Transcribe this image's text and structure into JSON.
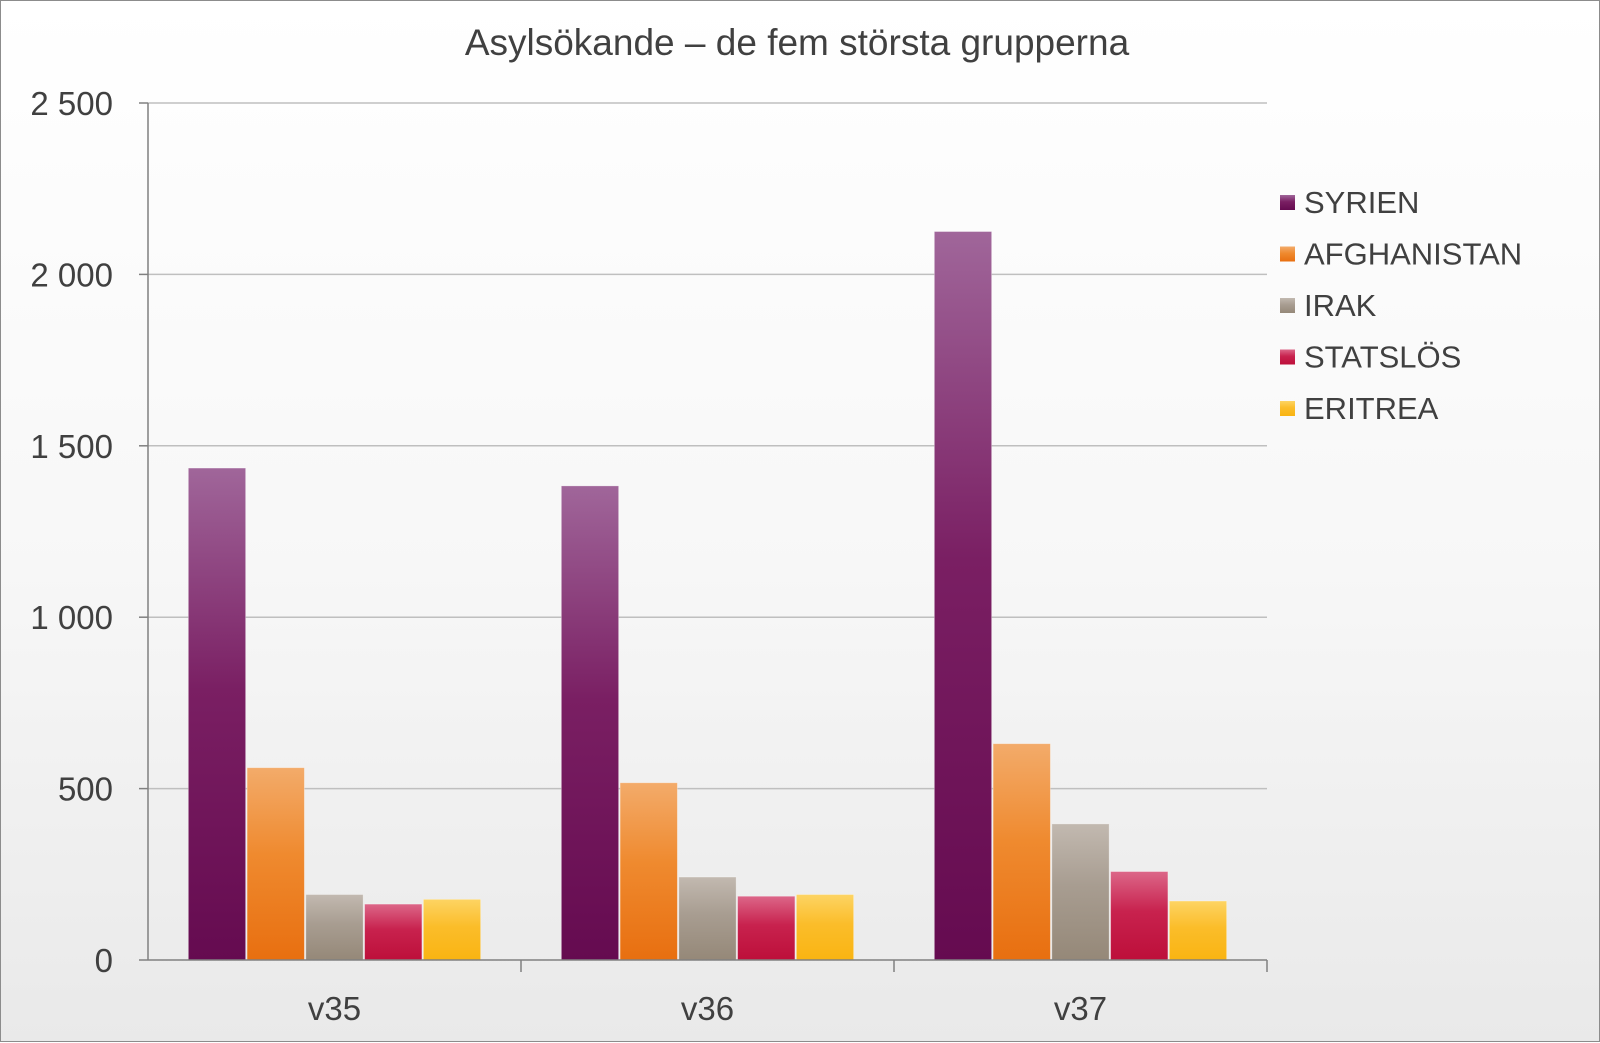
{
  "chart_data": {
    "type": "bar",
    "title": "Asylsökande – de fem största grupperna",
    "xlabel": "",
    "ylabel": "",
    "categories": [
      "v35",
      "v36",
      "v37"
    ],
    "series": [
      {
        "name": "SYRIEN",
        "values": [
          1435,
          1383,
          2125
        ],
        "color": "#7a1f63",
        "color_light": "#a0669a",
        "color_dark": "#650b50"
      },
      {
        "name": "AFGHANISTAN",
        "values": [
          561,
          517,
          631
        ],
        "color": "#ef8a2f",
        "color_light": "#f3ab6a",
        "color_dark": "#e86f10"
      },
      {
        "name": "IRAK",
        "values": [
          191,
          242,
          397
        ],
        "color": "#a89d91",
        "color_light": "#c2b9b0",
        "color_dark": "#958878"
      },
      {
        "name": "STATSLÖS",
        "values": [
          163,
          186,
          258
        ],
        "color": "#c8224e",
        "color_light": "#dc6688",
        "color_dark": "#bd0f3a"
      },
      {
        "name": "ERITREA",
        "values": [
          177,
          191,
          172
        ],
        "color": "#fbbd2a",
        "color_light": "#fdd463",
        "color_dark": "#f9b412"
      }
    ],
    "y_ticks": [
      "0",
      "500",
      "1 000",
      "1 500",
      "2 000",
      "2 500"
    ],
    "ylim": [
      0,
      2500
    ],
    "grid": true,
    "legend": "right"
  }
}
